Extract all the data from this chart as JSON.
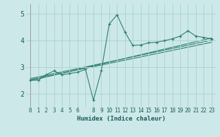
{
  "xlabel": "Humidex (Indice chaleur)",
  "ylabel": "",
  "xlim": [
    -0.5,
    23.5
  ],
  "ylim": [
    1.5,
    5.35
  ],
  "yticks": [
    2,
    3,
    4,
    5
  ],
  "bg_color": "#cce8e8",
  "grid_color": "#aed4d4",
  "line_color": "#2e7d70",
  "main_line_x": [
    0,
    1,
    2,
    3,
    4,
    5,
    6,
    7,
    8,
    9,
    10,
    11,
    12,
    13,
    14,
    15,
    16,
    17,
    18,
    19,
    20,
    21,
    22,
    23
  ],
  "main_line_y": [
    2.5,
    2.5,
    2.7,
    2.85,
    2.7,
    2.75,
    2.8,
    2.9,
    1.75,
    2.85,
    4.6,
    4.95,
    4.3,
    3.8,
    3.82,
    3.9,
    3.92,
    3.98,
    4.05,
    4.15,
    4.35,
    4.15,
    4.1,
    4.05
  ],
  "trend_line1_x": [
    0,
    23
  ],
  "trend_line1_y": [
    2.48,
    4.08
  ],
  "trend_line2_x": [
    0,
    23
  ],
  "trend_line2_y": [
    2.52,
    3.92
  ],
  "trend_line3_x": [
    0,
    23
  ],
  "trend_line3_y": [
    2.56,
    4.0
  ]
}
